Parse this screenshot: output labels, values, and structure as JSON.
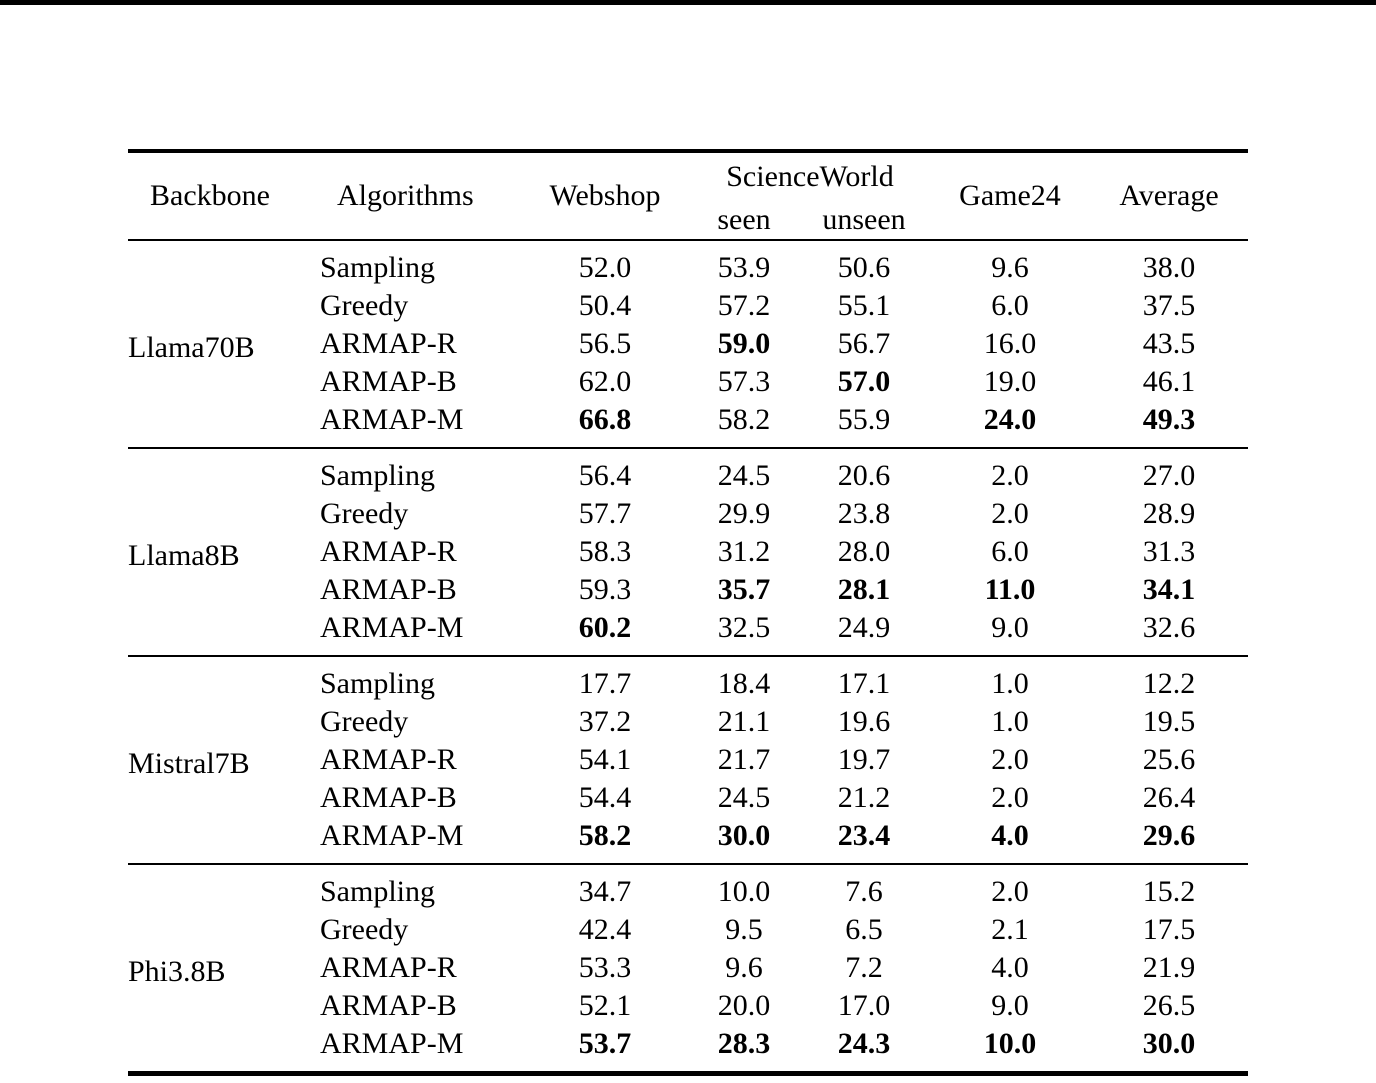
{
  "page": {
    "background_color": "#ffffff",
    "top_rule_color": "#000000",
    "text_color": "#000000"
  },
  "table": {
    "headers": {
      "backbone": "Backbone",
      "algorithms": "Algorithms",
      "webshop": "Webshop",
      "scienceworld": "ScienceWorld",
      "seen": "seen",
      "unseen": "unseen",
      "game24": "Game24",
      "average": "Average"
    },
    "groups": [
      {
        "backbone": "Llama70B",
        "rows": [
          {
            "algorithm": "Sampling",
            "values": [
              {
                "v": "52.0",
                "bold": false
              },
              {
                "v": "53.9",
                "bold": false
              },
              {
                "v": "50.6",
                "bold": false
              },
              {
                "v": "9.6",
                "bold": false
              },
              {
                "v": "38.0",
                "bold": false
              }
            ]
          },
          {
            "algorithm": "Greedy",
            "values": [
              {
                "v": "50.4",
                "bold": false
              },
              {
                "v": "57.2",
                "bold": false
              },
              {
                "v": "55.1",
                "bold": false
              },
              {
                "v": "6.0",
                "bold": false
              },
              {
                "v": "37.5",
                "bold": false
              }
            ]
          },
          {
            "algorithm": "ARMAP-R",
            "values": [
              {
                "v": "56.5",
                "bold": false
              },
              {
                "v": "59.0",
                "bold": true
              },
              {
                "v": "56.7",
                "bold": false
              },
              {
                "v": "16.0",
                "bold": false
              },
              {
                "v": "43.5",
                "bold": false
              }
            ]
          },
          {
            "algorithm": "ARMAP-B",
            "values": [
              {
                "v": "62.0",
                "bold": false
              },
              {
                "v": "57.3",
                "bold": false
              },
              {
                "v": "57.0",
                "bold": true
              },
              {
                "v": "19.0",
                "bold": false
              },
              {
                "v": "46.1",
                "bold": false
              }
            ]
          },
          {
            "algorithm": "ARMAP-M",
            "values": [
              {
                "v": "66.8",
                "bold": true
              },
              {
                "v": "58.2",
                "bold": false
              },
              {
                "v": "55.9",
                "bold": false
              },
              {
                "v": "24.0",
                "bold": true
              },
              {
                "v": "49.3",
                "bold": true
              }
            ]
          }
        ]
      },
      {
        "backbone": "Llama8B",
        "rows": [
          {
            "algorithm": "Sampling",
            "values": [
              {
                "v": "56.4",
                "bold": false
              },
              {
                "v": "24.5",
                "bold": false
              },
              {
                "v": "20.6",
                "bold": false
              },
              {
                "v": "2.0",
                "bold": false
              },
              {
                "v": "27.0",
                "bold": false
              }
            ]
          },
          {
            "algorithm": "Greedy",
            "values": [
              {
                "v": "57.7",
                "bold": false
              },
              {
                "v": "29.9",
                "bold": false
              },
              {
                "v": "23.8",
                "bold": false
              },
              {
                "v": "2.0",
                "bold": false
              },
              {
                "v": "28.9",
                "bold": false
              }
            ]
          },
          {
            "algorithm": "ARMAP-R",
            "values": [
              {
                "v": "58.3",
                "bold": false
              },
              {
                "v": "31.2",
                "bold": false
              },
              {
                "v": "28.0",
                "bold": false
              },
              {
                "v": "6.0",
                "bold": false
              },
              {
                "v": "31.3",
                "bold": false
              }
            ]
          },
          {
            "algorithm": "ARMAP-B",
            "values": [
              {
                "v": "59.3",
                "bold": false
              },
              {
                "v": "35.7",
                "bold": true
              },
              {
                "v": "28.1",
                "bold": true
              },
              {
                "v": "11.0",
                "bold": true
              },
              {
                "v": "34.1",
                "bold": true
              }
            ]
          },
          {
            "algorithm": "ARMAP-M",
            "values": [
              {
                "v": "60.2",
                "bold": true
              },
              {
                "v": "32.5",
                "bold": false
              },
              {
                "v": "24.9",
                "bold": false
              },
              {
                "v": "9.0",
                "bold": false
              },
              {
                "v": "32.6",
                "bold": false
              }
            ]
          }
        ]
      },
      {
        "backbone": "Mistral7B",
        "rows": [
          {
            "algorithm": "Sampling",
            "values": [
              {
                "v": "17.7",
                "bold": false
              },
              {
                "v": "18.4",
                "bold": false
              },
              {
                "v": "17.1",
                "bold": false
              },
              {
                "v": "1.0",
                "bold": false
              },
              {
                "v": "12.2",
                "bold": false
              }
            ]
          },
          {
            "algorithm": "Greedy",
            "values": [
              {
                "v": "37.2",
                "bold": false
              },
              {
                "v": "21.1",
                "bold": false
              },
              {
                "v": "19.6",
                "bold": false
              },
              {
                "v": "1.0",
                "bold": false
              },
              {
                "v": "19.5",
                "bold": false
              }
            ]
          },
          {
            "algorithm": "ARMAP-R",
            "values": [
              {
                "v": "54.1",
                "bold": false
              },
              {
                "v": "21.7",
                "bold": false
              },
              {
                "v": "19.7",
                "bold": false
              },
              {
                "v": "2.0",
                "bold": false
              },
              {
                "v": "25.6",
                "bold": false
              }
            ]
          },
          {
            "algorithm": "ARMAP-B",
            "values": [
              {
                "v": "54.4",
                "bold": false
              },
              {
                "v": "24.5",
                "bold": false
              },
              {
                "v": "21.2",
                "bold": false
              },
              {
                "v": "2.0",
                "bold": false
              },
              {
                "v": "26.4",
                "bold": false
              }
            ]
          },
          {
            "algorithm": "ARMAP-M",
            "values": [
              {
                "v": "58.2",
                "bold": true
              },
              {
                "v": "30.0",
                "bold": true
              },
              {
                "v": "23.4",
                "bold": true
              },
              {
                "v": "4.0",
                "bold": true
              },
              {
                "v": "29.6",
                "bold": true
              }
            ]
          }
        ]
      },
      {
        "backbone": "Phi3.8B",
        "rows": [
          {
            "algorithm": "Sampling",
            "values": [
              {
                "v": "34.7",
                "bold": false
              },
              {
                "v": "10.0",
                "bold": false
              },
              {
                "v": "7.6",
                "bold": false
              },
              {
                "v": "2.0",
                "bold": false
              },
              {
                "v": "15.2",
                "bold": false
              }
            ]
          },
          {
            "algorithm": "Greedy",
            "values": [
              {
                "v": "42.4",
                "bold": false
              },
              {
                "v": "9.5",
                "bold": false
              },
              {
                "v": "6.5",
                "bold": false
              },
              {
                "v": "2.1",
                "bold": false
              },
              {
                "v": "17.5",
                "bold": false
              }
            ]
          },
          {
            "algorithm": "ARMAP-R",
            "values": [
              {
                "v": "53.3",
                "bold": false
              },
              {
                "v": "9.6",
                "bold": false
              },
              {
                "v": "7.2",
                "bold": false
              },
              {
                "v": "4.0",
                "bold": false
              },
              {
                "v": "21.9",
                "bold": false
              }
            ]
          },
          {
            "algorithm": "ARMAP-B",
            "values": [
              {
                "v": "52.1",
                "bold": false
              },
              {
                "v": "20.0",
                "bold": false
              },
              {
                "v": "17.0",
                "bold": false
              },
              {
                "v": "9.0",
                "bold": false
              },
              {
                "v": "26.5",
                "bold": false
              }
            ]
          },
          {
            "algorithm": "ARMAP-M",
            "values": [
              {
                "v": "53.7",
                "bold": true
              },
              {
                "v": "28.3",
                "bold": true
              },
              {
                "v": "24.3",
                "bold": true
              },
              {
                "v": "10.0",
                "bold": true
              },
              {
                "v": "30.0",
                "bold": true
              }
            ]
          }
        ]
      }
    ]
  }
}
